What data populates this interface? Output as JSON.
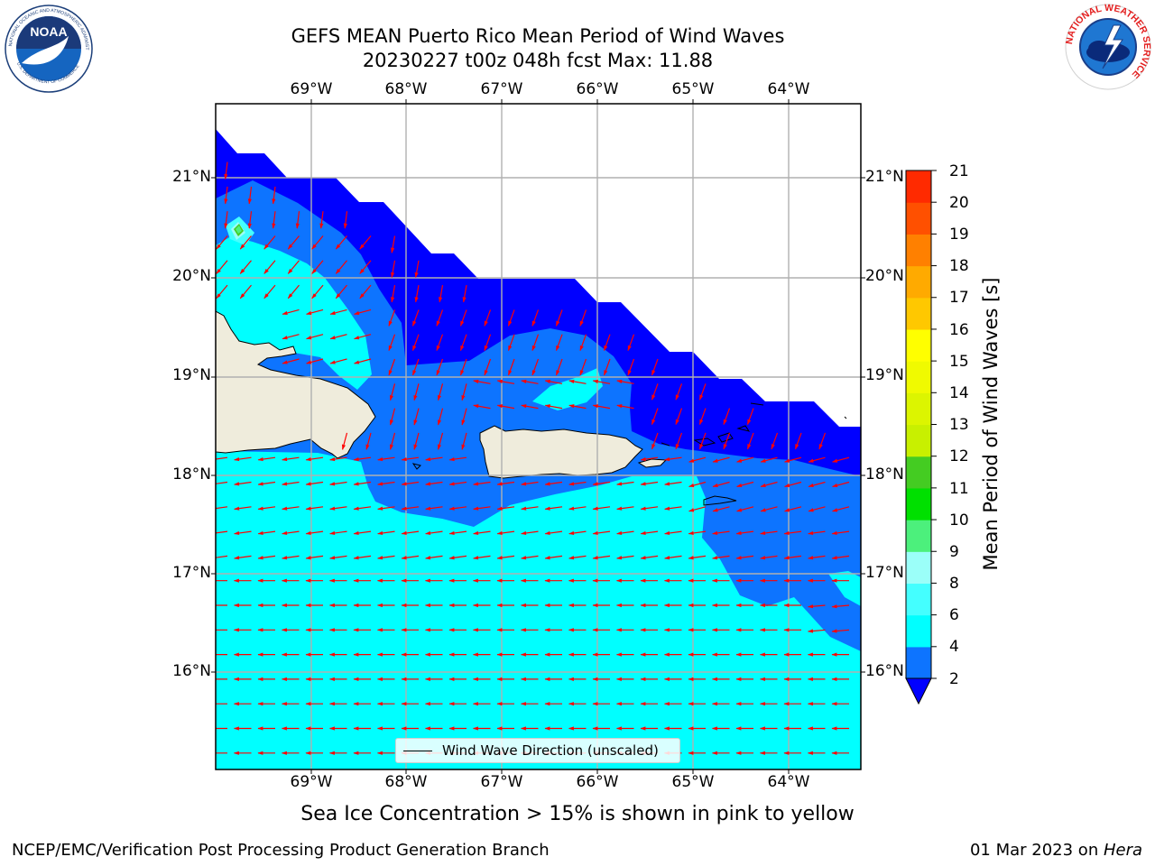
{
  "header": {
    "title": "GEFS MEAN Puerto Rico Mean Period of Wind Waves",
    "subtitle": "20230227 t00z 048h fcst   Max: 11.88"
  },
  "map": {
    "lon_labels": [
      "69°W",
      "68°W",
      "67°W",
      "66°W",
      "65°W",
      "64°W"
    ],
    "lat_labels": [
      "21°N",
      "20°N",
      "19°N",
      "18°N",
      "17°N",
      "16°N"
    ],
    "arrow_color": "#ff0000",
    "land_color": "#efecdc",
    "legend_label": "Wind Wave Direction (unscaled)"
  },
  "colorbar": {
    "label": "Mean Period of Wind Waves [s]",
    "levels": [
      "2",
      "4",
      "6",
      "8",
      "9",
      "10",
      "11",
      "12",
      "13",
      "14",
      "15",
      "16",
      "17",
      "18",
      "19",
      "20",
      "21"
    ],
    "colors": [
      "#0d74ff",
      "#00ffff",
      "#44ffff",
      "#9bfff9",
      "#4cf07c",
      "#00e000",
      "#44cc22",
      "#c8f000",
      "#dcf500",
      "#f0fa00",
      "#ffff00",
      "#ffc800",
      "#ffaa00",
      "#ff8000",
      "#ff5000",
      "#ff2a00"
    ],
    "under_color": "#0000ff"
  },
  "note": "Sea Ice Concentration > 15% is shown in pink to yellow",
  "footer": {
    "left": "NCEP/EMC/Verification Post Processing Product Generation Branch",
    "date": "01 Mar 2023 on ",
    "host": "Hera"
  },
  "logos": {
    "noaa": "NOAA",
    "noaa_ring": "NATIONAL OCEANIC AND ATMOSPHERIC ADMINISTRATION",
    "noaa_bottom": "U.S. DEPARTMENT OF COMMERCE",
    "nws_ring": "NATIONAL WEATHER SERVICE"
  }
}
